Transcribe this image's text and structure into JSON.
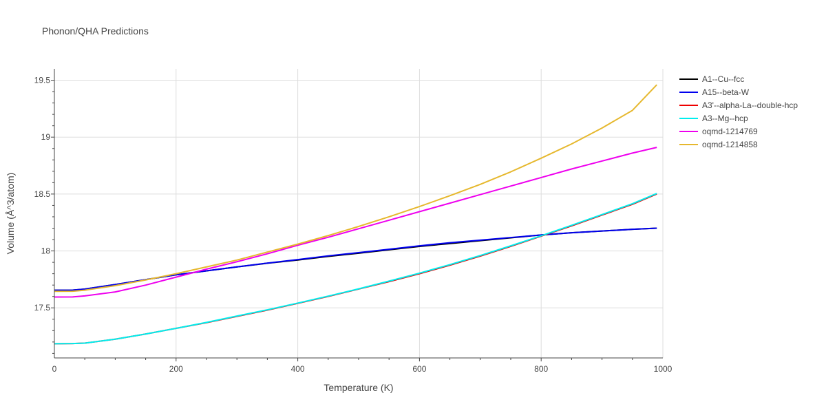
{
  "chart_data": {
    "type": "line",
    "title": "Phonon/QHA Predictions",
    "xlabel": "Temperature (K)",
    "ylabel": "Volume (Å^3/atom)",
    "xlim": [
      0,
      1000
    ],
    "ylim": [
      17.06,
      19.6
    ],
    "x_ticks": [
      "0",
      "200",
      "400",
      "600",
      "800",
      "1000"
    ],
    "y_ticks": [
      "17.5",
      "18",
      "18.5",
      "19",
      "19.5"
    ],
    "grid": true,
    "legend_position": "top-right",
    "x": [
      0,
      30,
      50,
      100,
      150,
      200,
      250,
      300,
      350,
      400,
      450,
      500,
      550,
      600,
      650,
      700,
      750,
      800,
      850,
      900,
      950,
      990
    ],
    "series": [
      {
        "name": "A1--Cu--fcc",
        "color": "#000000",
        "values": [
          17.655,
          17.656,
          17.665,
          17.705,
          17.748,
          17.79,
          17.825,
          17.86,
          17.892,
          17.92,
          17.952,
          17.98,
          18.01,
          18.04,
          18.065,
          18.09,
          18.115,
          18.14,
          18.16,
          18.175,
          18.19,
          18.2
        ]
      },
      {
        "name": "A15--beta-W",
        "color": "#0000ee",
        "values": [
          17.655,
          17.656,
          17.665,
          17.705,
          17.748,
          17.79,
          17.825,
          17.86,
          17.893,
          17.924,
          17.957,
          17.985,
          18.015,
          18.045,
          18.072,
          18.095,
          18.118,
          18.14,
          18.16,
          18.175,
          18.19,
          18.2
        ]
      },
      {
        "name": "A3'--alpha-La--double-hcp",
        "color": "#ee0000",
        "values": [
          17.185,
          17.186,
          17.19,
          17.225,
          17.27,
          17.32,
          17.37,
          17.425,
          17.48,
          17.54,
          17.6,
          17.665,
          17.73,
          17.8,
          17.875,
          17.955,
          18.04,
          18.13,
          18.22,
          18.315,
          18.41,
          18.5
        ]
      },
      {
        "name": "A3--Mg--hcp",
        "color": "#00eeee",
        "values": [
          17.185,
          17.186,
          17.19,
          17.225,
          17.27,
          17.32,
          17.372,
          17.428,
          17.483,
          17.542,
          17.603,
          17.667,
          17.735,
          17.805,
          17.88,
          17.96,
          18.045,
          18.133,
          18.225,
          18.32,
          18.415,
          18.505
        ]
      },
      {
        "name": "oqmd-1214769",
        "color": "#ee00ee",
        "values": [
          17.595,
          17.596,
          17.605,
          17.64,
          17.7,
          17.77,
          17.84,
          17.905,
          17.975,
          18.05,
          18.12,
          18.195,
          18.27,
          18.345,
          18.42,
          18.495,
          18.57,
          18.645,
          18.72,
          18.79,
          18.86,
          18.91
        ]
      },
      {
        "name": "oqmd-1214858",
        "color": "#e6b82e",
        "values": [
          17.645,
          17.646,
          17.655,
          17.695,
          17.745,
          17.8,
          17.86,
          17.92,
          17.99,
          18.06,
          18.135,
          18.215,
          18.3,
          18.39,
          18.485,
          18.585,
          18.695,
          18.815,
          18.94,
          19.08,
          19.235,
          19.46
        ]
      }
    ]
  }
}
